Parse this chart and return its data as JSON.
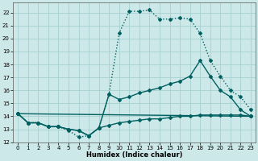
{
  "xlabel": "Humidex (Indice chaleur)",
  "xlim": [
    -0.5,
    23.5
  ],
  "ylim": [
    12,
    22.8
  ],
  "yticks": [
    12,
    13,
    14,
    15,
    16,
    17,
    18,
    19,
    20,
    21,
    22
  ],
  "xticks": [
    0,
    1,
    2,
    3,
    4,
    5,
    6,
    7,
    8,
    9,
    10,
    11,
    12,
    13,
    14,
    15,
    16,
    17,
    18,
    19,
    20,
    21,
    22,
    23
  ],
  "bg_color": "#cde8e8",
  "grid_color": "#a0cccc",
  "line_color": "#006060",
  "line1_x": [
    0,
    1,
    2,
    3,
    4,
    5,
    6,
    7,
    8,
    9,
    10,
    11,
    12,
    13,
    14,
    15,
    16,
    17,
    18,
    19,
    20,
    21,
    22,
    23
  ],
  "line1_y": [
    14.2,
    13.5,
    13.5,
    13.2,
    13.2,
    12.9,
    12.4,
    12.5,
    13.1,
    15.7,
    20.4,
    22.1,
    22.1,
    22.2,
    21.5,
    21.5,
    21.6,
    21.5,
    20.4,
    18.3,
    17.1,
    16.0,
    15.5,
    14.5
  ],
  "line1_dot": true,
  "line2_x": [
    0,
    23
  ],
  "line2_y": [
    14.2,
    14.0
  ],
  "line2_dot": false,
  "line3_x": [
    0,
    1,
    2,
    3,
    4,
    5,
    6,
    7,
    8,
    9,
    10,
    11,
    12,
    13,
    14,
    15,
    16,
    17,
    18,
    19,
    20,
    21,
    22,
    23
  ],
  "line3_y": [
    14.2,
    13.5,
    13.5,
    13.2,
    13.2,
    13.0,
    12.9,
    12.5,
    13.1,
    13.3,
    13.5,
    13.6,
    13.7,
    13.8,
    13.8,
    13.9,
    14.0,
    14.0,
    14.1,
    14.1,
    14.1,
    14.1,
    14.1,
    14.0
  ],
  "line3_dot": false,
  "line4_x": [
    0,
    1,
    2,
    3,
    4,
    5,
    6,
    7,
    8,
    9,
    10,
    11,
    12,
    13,
    14,
    15,
    16,
    17,
    18,
    19,
    20,
    21,
    22,
    23
  ],
  "line4_y": [
    14.2,
    13.5,
    13.5,
    13.2,
    13.2,
    13.0,
    12.9,
    12.5,
    13.1,
    15.7,
    15.3,
    15.5,
    15.8,
    16.0,
    16.2,
    16.5,
    16.7,
    17.1,
    18.3,
    17.1,
    16.0,
    15.5,
    14.5,
    14.0
  ],
  "line4_dot": false
}
